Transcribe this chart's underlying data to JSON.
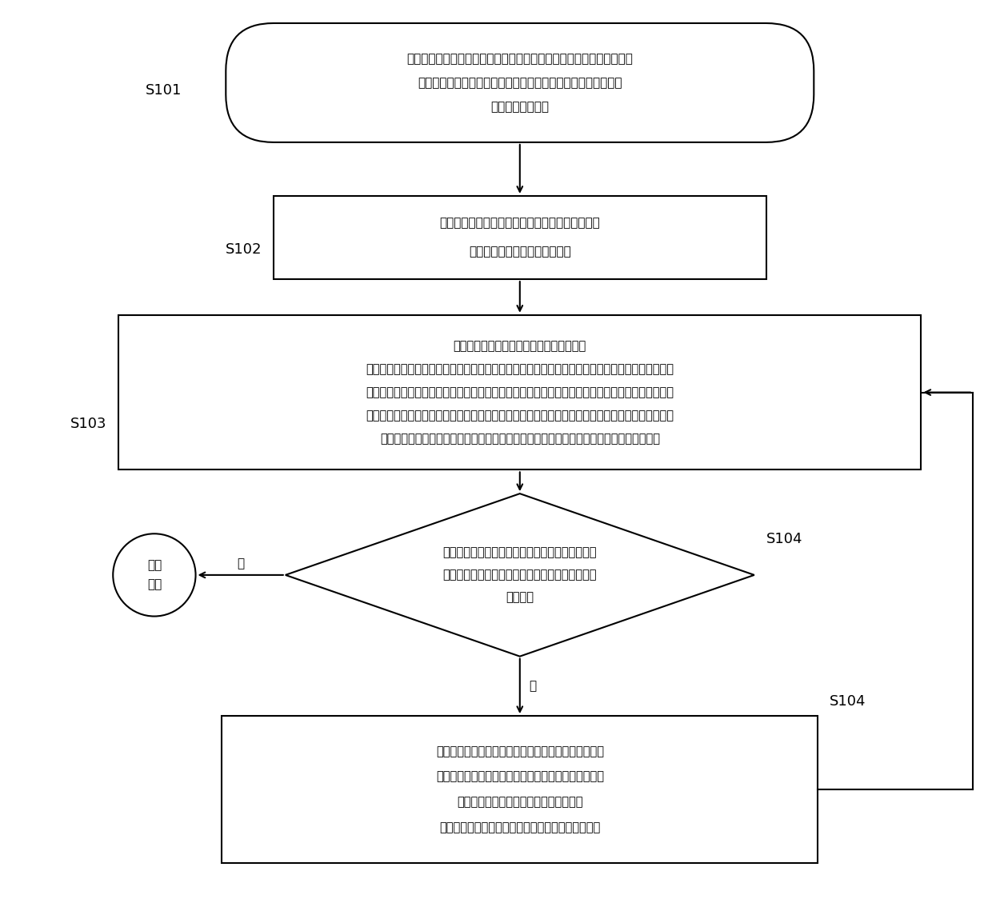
{
  "background_color": "#ffffff",
  "fig_width": 12.4,
  "fig_height": 11.39,
  "s101_label": "S101",
  "s102_label": "S102",
  "s103_label": "S103",
  "s104_label_right": "S104",
  "s104_label_bottom": "S104",
  "box1_line1": "在玻璃承载板的承载面选取多个检测点，其中，所述多个检测点中至少",
  "box1_line2": "包括位于所述承载面的中心的中心检测点、所述承载面的四个角",
  "box1_line3": "部的角部检测点；",
  "box2_line1": "以所述玻璃承载板在第一角度时且以所述中心检测",
  "box2_line2": "点为基准点对变位计进行归零；",
  "box3_line1": "检测所述玻璃承载板在多个角度下各个检测",
  "box3_line2": "点的距离信息，其中，所述玻璃承载装置包括至少三个所述角度，所述玻璃承载板在每一个所述角度",
  "box3_line3": "下形成一个检测位置，所述玻璃承载板位于每个所述检测位置时检测并获得所述玻璃承载板在每个检",
  "box3_line4": "测位置时多个检测点的独立数据，并且，所述玻璃承载板在每个所述检测位置的独立数据综合在一起",
  "box3_line5": "形成综合数据，确定所述综合数据中的最大值和最小值的差值记录为本次检测的最大阈值；",
  "diamond_line1": "比对所述本次检测的最大阈值与预设精度值之间的",
  "diamond_line2": "关系，判断本次检测的最大阈值是否小于所述预设",
  "diamond_line3": "精度值；",
  "circle_line1": "停止",
  "circle_line2": "调节",
  "box5_line1": "选取所述玻璃承载板的调节基准面，调节设置在背离所",
  "box5_line2": "述玻璃承载板一侧的顶起机构，并平移所述变位计进行",
  "box5_line3": "检测，使所述调节基准面的四个角部检测",
  "box5_line4": "点的距离均小于所述本次检测的最大阈值的二分之一",
  "yes_label": "是",
  "no_label": "否",
  "text_color": "#000000",
  "box_edge_color": "#000000",
  "arrow_color": "#000000"
}
